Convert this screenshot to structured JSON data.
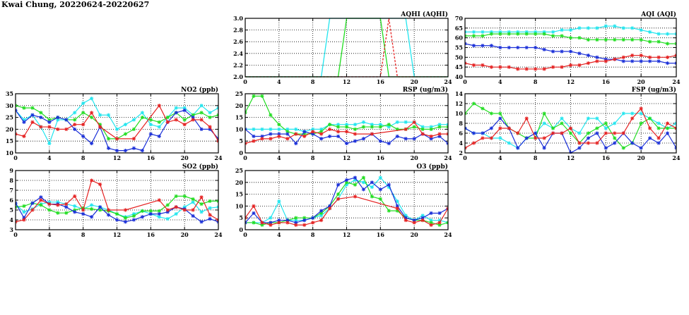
{
  "page": {
    "title": "Kwai Chung, 20220624-20220627"
  },
  "colors": {
    "cyan": "#22e5ee",
    "green": "#22dd22",
    "blue": "#1a2fd8",
    "red": "#e52222"
  },
  "chart_data": [
    {
      "id": "aqhi",
      "type": "line",
      "title": "AQHI (AQHI)",
      "xlim": [
        0,
        24
      ],
      "ylim": [
        2.0,
        3.0
      ],
      "xticks": [
        0,
        4,
        8,
        12,
        16,
        20,
        24
      ],
      "yticks": [
        2.0,
        2.2,
        2.4,
        2.6,
        2.8,
        3.0
      ],
      "ytick_labels": [
        "2.0",
        "2.2",
        "2.4",
        "2.6",
        "2.8",
        "3.0"
      ],
      "grid": true,
      "series": [
        {
          "color": "cyan",
          "values": [
            2,
            2,
            2,
            2,
            2,
            2,
            2,
            2,
            2,
            2,
            3,
            3,
            3,
            3,
            3,
            3,
            3,
            3,
            3,
            3,
            2,
            2,
            2,
            2,
            2
          ]
        },
        {
          "color": "green",
          "values": [
            2,
            2,
            2,
            2,
            2,
            2,
            2,
            2,
            2,
            2,
            2,
            2,
            3,
            3,
            3,
            3,
            3,
            2,
            2,
            2,
            2,
            2,
            2,
            2,
            2
          ]
        },
        {
          "color": "red",
          "values": [
            2,
            2,
            2,
            2,
            2,
            2,
            2,
            2,
            2,
            2,
            2,
            2,
            2,
            2,
            2,
            2,
            2,
            3,
            2,
            2,
            2,
            2,
            2,
            2,
            2
          ]
        }
      ]
    },
    {
      "id": "aqi",
      "type": "line",
      "title": "AQI (AQI)",
      "xlim": [
        0,
        24
      ],
      "ylim": [
        40,
        70
      ],
      "xticks": [
        0,
        4,
        8,
        12,
        16,
        20,
        24
      ],
      "yticks": [
        40,
        45,
        50,
        55,
        60,
        65,
        70
      ],
      "grid": true,
      "series": [
        {
          "color": "cyan",
          "values": [
            63,
            63,
            63,
            63,
            63,
            63,
            63,
            63,
            63,
            63,
            63,
            64,
            64,
            65,
            65,
            65,
            66,
            66,
            65,
            65,
            64,
            63,
            62,
            62,
            62
          ]
        },
        {
          "color": "green",
          "values": [
            61,
            61,
            61,
            62,
            62,
            62,
            62,
            62,
            62,
            62,
            61,
            61,
            60,
            60,
            59,
            59,
            59,
            59,
            59,
            59,
            59,
            58,
            58,
            57,
            57
          ]
        },
        {
          "color": "blue",
          "values": [
            57,
            56,
            56,
            56,
            55,
            55,
            55,
            55,
            55,
            54,
            53,
            53,
            53,
            52,
            51,
            50,
            49,
            49,
            48,
            48,
            48,
            48,
            48,
            47,
            47
          ]
        },
        {
          "color": "red",
          "values": [
            47,
            46,
            46,
            45,
            45,
            45,
            44,
            44,
            44,
            44,
            45,
            45,
            46,
            46,
            47,
            48,
            48,
            49,
            50,
            51,
            51,
            50,
            50,
            50,
            51
          ]
        }
      ]
    },
    {
      "id": "no2",
      "type": "line",
      "title": "NO2 (ppb)",
      "xlim": [
        0,
        24
      ],
      "ylim": [
        10,
        35
      ],
      "xticks": [
        0,
        4,
        8,
        12,
        16,
        20,
        24
      ],
      "yticks": [
        10,
        15,
        20,
        25,
        30,
        35
      ],
      "grid": true,
      "series": [
        {
          "color": "cyan",
          "values": [
            28,
            24,
            26,
            21,
            14,
            24,
            24,
            27,
            31,
            33,
            26,
            26,
            20,
            22,
            24,
            27,
            22,
            21,
            25,
            29,
            29,
            26,
            30,
            27,
            29
          ]
        },
        {
          "color": "green",
          "values": [
            30,
            29,
            29,
            27,
            24,
            25,
            24,
            24,
            27,
            25,
            22,
            16,
            16,
            18,
            20,
            25,
            24,
            23,
            25,
            27,
            24,
            26,
            27,
            25,
            26
          ]
        },
        {
          "color": "blue",
          "values": [
            28,
            23,
            26,
            25,
            23,
            25,
            24,
            20,
            17,
            14,
            21,
            12,
            11,
            11,
            12,
            11,
            18,
            17,
            23,
            27,
            28,
            25,
            20,
            20,
            16
          ]
        },
        {
          "color": "red",
          "values": [
            18,
            17,
            23,
            21,
            21,
            20,
            20,
            22,
            22,
            27,
            21,
            null,
            16,
            null,
            16,
            null,
            null,
            30,
            23,
            24,
            22,
            24,
            24,
            21,
            15
          ]
        }
      ]
    },
    {
      "id": "rsp",
      "type": "line",
      "title": "RSP (ug/m3)",
      "xlim": [
        0,
        24
      ],
      "ylim": [
        0,
        25
      ],
      "xticks": [
        0,
        4,
        8,
        12,
        16,
        20,
        24
      ],
      "yticks": [
        0,
        5,
        10,
        15,
        20,
        25
      ],
      "grid": true,
      "series": [
        {
          "color": "cyan",
          "values": [
            10,
            10,
            10,
            10,
            10,
            10,
            10,
            9,
            10,
            10,
            12,
            12,
            12,
            12,
            13,
            12,
            12,
            11,
            13,
            13,
            13,
            11,
            11,
            12,
            12
          ]
        },
        {
          "color": "green",
          "values": [
            17,
            24,
            24,
            16,
            12,
            9,
            8,
            8,
            8,
            9,
            12,
            11,
            11,
            10,
            11,
            11,
            11,
            12,
            10,
            10,
            11,
            10,
            10,
            11,
            11
          ]
        },
        {
          "color": "blue",
          "values": [
            10,
            7,
            7,
            8,
            8,
            8,
            4,
            9,
            8,
            6,
            7,
            7,
            4,
            5,
            6,
            8,
            5,
            4,
            7,
            6,
            6,
            8,
            6,
            7,
            4
          ]
        },
        {
          "color": "red",
          "values": [
            4,
            5,
            6,
            6,
            7,
            6,
            8,
            7,
            9,
            8,
            10,
            9,
            9,
            8,
            null,
            8,
            null,
            null,
            null,
            10,
            13,
            8,
            7,
            8,
            8
          ]
        }
      ]
    },
    {
      "id": "fsp",
      "type": "line",
      "title": "FSP (ug/m3)",
      "xlim": [
        0,
        24
      ],
      "ylim": [
        2,
        14
      ],
      "xticks": [
        0,
        4,
        8,
        12,
        16,
        20,
        24
      ],
      "yticks": [
        2,
        4,
        6,
        8,
        10,
        12,
        14
      ],
      "grid": true,
      "series": [
        {
          "color": "cyan",
          "values": [
            7,
            6,
            6,
            5,
            5,
            4,
            3,
            5,
            6,
            8,
            7,
            9,
            7,
            6,
            9,
            9,
            7,
            8,
            10,
            10,
            10,
            9,
            8,
            7,
            8
          ]
        },
        {
          "color": "green",
          "values": [
            10,
            12,
            11,
            10,
            10,
            7,
            6,
            5,
            5,
            10,
            7,
            8,
            6,
            4,
            6,
            7,
            8,
            5,
            3,
            4,
            8,
            9,
            7,
            7,
            7
          ]
        },
        {
          "color": "blue",
          "values": [
            7,
            6,
            6,
            7,
            9,
            7,
            3,
            5,
            6,
            3,
            6,
            6,
            2,
            3,
            5,
            6,
            3,
            4,
            6,
            4,
            3,
            5,
            4,
            6,
            3
          ]
        },
        {
          "color": "red",
          "values": [
            3,
            4,
            5,
            5,
            7,
            7,
            6,
            9,
            5,
            5,
            6,
            6,
            7,
            4,
            4,
            4,
            6,
            6,
            6,
            9,
            11,
            7,
            5,
            8,
            7
          ]
        }
      ]
    },
    {
      "id": "so2",
      "type": "line",
      "title": "SO2 (ppb)",
      "xlim": [
        0,
        24
      ],
      "ylim": [
        3,
        9
      ],
      "xticks": [
        0,
        4,
        8,
        12,
        16,
        20,
        24
      ],
      "yticks": [
        3,
        4,
        5,
        6,
        7,
        8,
        9
      ],
      "grid": true,
      "series": [
        {
          "color": "cyan",
          "values": [
            5.6,
            4.8,
            5.1,
            5.6,
            5.8,
            5.8,
            5.6,
            5.4,
            5.1,
            5.5,
            5.3,
            5.0,
            4.6,
            4.3,
            4.6,
            4.9,
            4.6,
            4.3,
            4.1,
            4.6,
            5.3,
            5.8,
            4.8,
            5.2,
            5.3
          ]
        },
        {
          "color": "green",
          "values": [
            5.3,
            5.4,
            5.7,
            5.5,
            5.0,
            4.7,
            4.7,
            5.0,
            5.2,
            5.1,
            5.0,
            4.9,
            4.6,
            4.2,
            4.4,
            4.9,
            4.9,
            4.9,
            5.5,
            6.4,
            6.4,
            6.1,
            5.6,
            5.9,
            5.9
          ]
        },
        {
          "color": "blue",
          "values": [
            5.7,
            4.2,
            5.7,
            6.3,
            5.6,
            5.6,
            5.3,
            4.8,
            4.6,
            4.3,
            5.3,
            4.5,
            4.0,
            3.8,
            4.0,
            4.3,
            4.6,
            4.6,
            4.8,
            5.3,
            5.1,
            4.4,
            3.8,
            4.1,
            3.8
          ]
        },
        {
          "color": "red",
          "values": [
            3.8,
            4.0,
            5.0,
            6.0,
            5.6,
            5.5,
            5.6,
            6.4,
            5.0,
            8.0,
            7.6,
            5.0,
            null,
            5.0,
            null,
            null,
            null,
            6.0,
            5.0,
            5.3,
            5.0,
            5.0,
            6.3,
            4.5,
            4.0
          ]
        }
      ]
    },
    {
      "id": "o3",
      "type": "line",
      "title": "O3 (ppb)",
      "xlim": [
        0,
        24
      ],
      "ylim": [
        0,
        25
      ],
      "xticks": [
        0,
        4,
        8,
        12,
        16,
        20,
        24
      ],
      "yticks": [
        0,
        5,
        10,
        15,
        20,
        25
      ],
      "grid": true,
      "series": [
        {
          "color": "cyan",
          "values": [
            3,
            3,
            3,
            5,
            12,
            4,
            4,
            4,
            5,
            6,
            9,
            13,
            19,
            21,
            20,
            18,
            22,
            18,
            12,
            6,
            4,
            6,
            4,
            4,
            3
          ]
        },
        {
          "color": "green",
          "values": [
            3,
            3,
            2,
            3,
            3,
            4,
            5,
            5,
            5,
            7,
            10,
            15,
            20,
            19,
            22,
            14,
            13,
            8,
            8,
            5,
            4,
            4,
            3,
            2,
            3
          ]
        },
        {
          "color": "blue",
          "values": [
            3,
            7,
            3,
            3,
            4,
            4,
            3,
            4,
            5,
            8,
            10,
            19,
            21,
            22,
            17,
            20,
            17,
            19,
            10,
            5,
            4,
            5,
            7,
            7,
            9
          ]
        },
        {
          "color": "red",
          "values": [
            5,
            10,
            3,
            2,
            3,
            3,
            2,
            2,
            3,
            4,
            9,
            13,
            null,
            14,
            null,
            null,
            null,
            null,
            9,
            4,
            3,
            4,
            2,
            3,
            9
          ]
        }
      ]
    }
  ]
}
